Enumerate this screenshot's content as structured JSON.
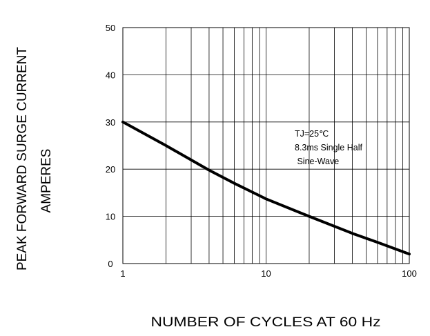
{
  "chart_data": {
    "type": "line",
    "title": "",
    "xlabel": "NUMBER OF CYCLES AT 60 Hz",
    "ylabel": [
      "PEAK FORWARD SURGE CURRENT",
      "AMPERES"
    ],
    "x_scale": "log",
    "xlim": [
      1,
      100
    ],
    "ylim": [
      0,
      50
    ],
    "x_ticks": [
      "1",
      "10",
      "100"
    ],
    "y_ticks": [
      "0",
      "10",
      "20",
      "30",
      "40",
      "50"
    ],
    "grid": true,
    "legend": "none",
    "annotations": [
      "TJ=25℃",
      "8.3ms Single Half",
      " Sine-Wave"
    ],
    "series": [
      {
        "x": [
          1,
          2,
          4,
          6,
          10,
          20,
          40,
          60,
          100
        ],
        "y": [
          30,
          25,
          19.8,
          17,
          13.7,
          10,
          6.4,
          4.5,
          2
        ],
        "color": "#000000"
      }
    ]
  }
}
